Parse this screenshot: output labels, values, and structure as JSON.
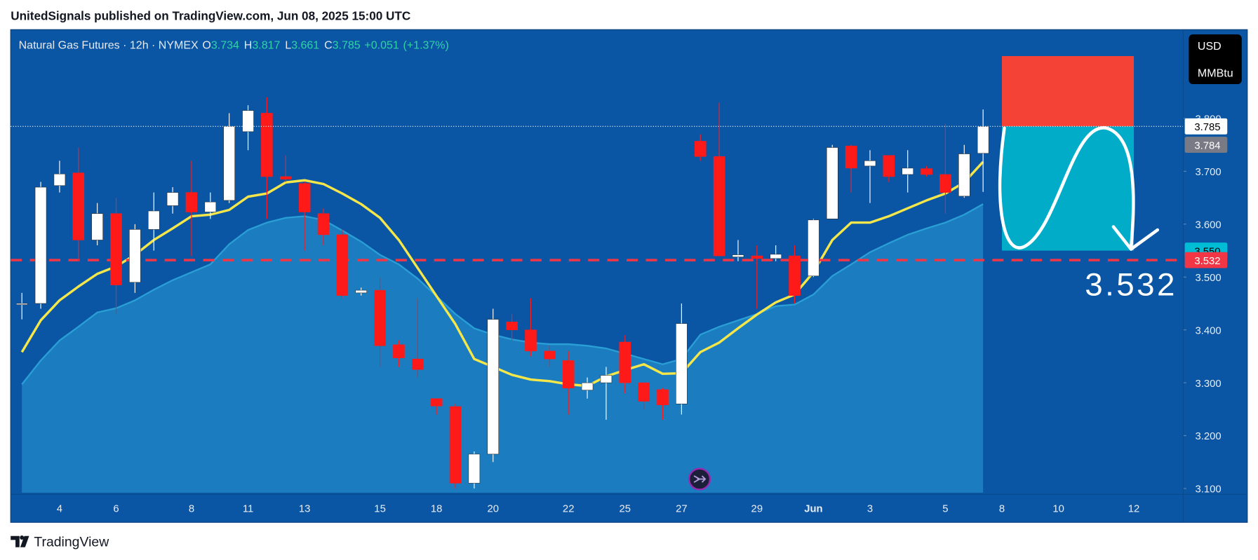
{
  "header": {
    "text": "UnitedSignals published on TradingView.com, Jun 08, 2025 15:00 UTC"
  },
  "footer": {
    "logo": "TradingView"
  },
  "chart_data": {
    "type": "candlestick",
    "title": "Natural Gas Futures · 12h · NYMEX",
    "legend": {
      "o_label": "O",
      "open": 3.734,
      "h_label": "H",
      "high": 3.817,
      "l_label": "L",
      "low": 3.661,
      "c_label": "C",
      "close": 3.785,
      "change": "+0.051",
      "change_pct": "(+1.37%)"
    },
    "currency": "USD",
    "unit": "MMBtu",
    "categories": [
      null,
      null,
      "4",
      null,
      null,
      "6",
      null,
      null,
      null,
      "8",
      null,
      null,
      "11",
      null,
      null,
      "13",
      null,
      null,
      null,
      "15",
      null,
      null,
      "18",
      null,
      null,
      "20",
      null,
      null,
      null,
      "22",
      null,
      null,
      "25",
      null,
      null,
      "27",
      null,
      null,
      null,
      "29",
      null,
      null,
      "Jun",
      null,
      null,
      "3",
      null,
      null,
      null,
      "5",
      null,
      null,
      "8",
      null,
      null,
      "10",
      null,
      null,
      null,
      "12",
      null
    ],
    "open": [
      3.45,
      3.45,
      3.673,
      3.697,
      3.57,
      3.62,
      3.49,
      3.59,
      3.635,
      3.66,
      3.623,
      3.645,
      3.775,
      3.81,
      3.69,
      3.677,
      3.62,
      3.58,
      3.47,
      3.475,
      3.372,
      3.345,
      3.27,
      3.255,
      3.11,
      3.165,
      3.415,
      3.4,
      3.36,
      3.342,
      3.286,
      3.3,
      3.377,
      3.3,
      3.287,
      3.26,
      3.757,
      3.728,
      3.538,
      3.54,
      3.535,
      3.54,
      3.502,
      3.61,
      3.748,
      3.71,
      3.73,
      3.694,
      3.705,
      3.694,
      3.653,
      3.734,
      null,
      null,
      null,
      null,
      null,
      null,
      null,
      null,
      null
    ],
    "high": [
      3.47,
      3.68,
      3.72,
      3.745,
      3.64,
      3.65,
      3.6,
      3.66,
      3.67,
      3.72,
      3.66,
      3.81,
      3.825,
      3.84,
      3.73,
      3.68,
      3.63,
      3.59,
      3.48,
      3.5,
      3.38,
      3.46,
      3.27,
      3.26,
      3.17,
      3.44,
      3.43,
      3.46,
      3.37,
      3.36,
      3.31,
      3.33,
      3.39,
      3.3,
      3.29,
      3.45,
      3.77,
      3.83,
      3.57,
      3.56,
      3.56,
      3.56,
      3.61,
      3.75,
      3.75,
      3.74,
      3.73,
      3.74,
      3.71,
      3.79,
      3.75,
      3.817,
      null,
      null,
      null,
      null,
      null,
      null,
      null,
      null,
      null
    ],
    "low": [
      3.42,
      3.44,
      3.66,
      3.53,
      3.56,
      3.43,
      3.47,
      3.55,
      3.62,
      3.54,
      3.61,
      3.64,
      3.74,
      3.61,
      3.68,
      3.55,
      3.56,
      3.46,
      3.465,
      3.33,
      3.33,
      3.31,
      3.24,
      3.1,
      3.1,
      3.15,
      3.38,
      3.35,
      3.33,
      3.24,
      3.27,
      3.23,
      3.28,
      3.25,
      3.23,
      3.24,
      3.72,
      3.54,
      3.53,
      3.44,
      3.53,
      3.45,
      3.5,
      3.61,
      3.66,
      3.64,
      3.68,
      3.66,
      3.69,
      3.62,
      3.65,
      3.661,
      null,
      null,
      null,
      null,
      null,
      null,
      null,
      null,
      null
    ],
    "close": [
      3.45,
      3.67,
      3.695,
      3.57,
      3.62,
      3.485,
      3.59,
      3.625,
      3.66,
      3.623,
      3.642,
      3.785,
      3.815,
      3.69,
      3.685,
      3.623,
      3.58,
      3.465,
      3.475,
      3.37,
      3.347,
      3.325,
      3.256,
      3.11,
      3.165,
      3.42,
      3.4,
      3.36,
      3.345,
      3.29,
      3.3,
      3.314,
      3.3,
      3.265,
      3.258,
      3.412,
      3.728,
      3.54,
      3.542,
      3.535,
      3.543,
      3.465,
      3.608,
      3.745,
      3.706,
      3.72,
      3.69,
      3.706,
      3.694,
      3.66,
      3.733,
      3.785,
      null,
      null,
      null,
      null,
      null,
      null,
      null,
      null,
      null
    ],
    "up_color": "#ffffff",
    "down_color": "#ff1a1a",
    "series": [
      {
        "type": "area",
        "color": "#2a9fd6",
        "values": [
          3.297,
          3.342,
          3.38,
          3.406,
          3.433,
          3.441,
          3.456,
          3.476,
          3.494,
          3.509,
          3.524,
          3.562,
          3.589,
          3.603,
          3.612,
          3.615,
          3.608,
          3.588,
          3.567,
          3.542,
          3.524,
          3.497,
          3.464,
          3.43,
          3.403,
          3.391,
          3.382,
          3.376,
          3.373,
          3.373,
          3.37,
          3.365,
          3.355,
          3.345,
          3.335,
          3.345,
          3.391,
          3.406,
          3.418,
          3.43,
          3.445,
          3.448,
          3.467,
          3.502,
          3.524,
          3.547,
          3.564,
          3.58,
          3.592,
          3.603,
          3.618,
          3.638,
          null,
          null,
          null,
          null,
          null,
          null,
          null,
          null,
          null
        ]
      },
      {
        "type": "line",
        "color": "#f5e74a",
        "values": [
          3.358,
          3.418,
          3.456,
          3.482,
          3.506,
          3.52,
          3.542,
          3.57,
          3.592,
          3.615,
          3.618,
          3.627,
          3.652,
          3.658,
          3.679,
          3.683,
          3.676,
          3.658,
          3.638,
          3.612,
          3.57,
          3.517,
          3.464,
          3.411,
          3.345,
          3.33,
          3.315,
          3.306,
          3.303,
          3.297,
          3.294,
          3.312,
          3.324,
          3.335,
          3.317,
          3.318,
          3.358,
          3.376,
          3.403,
          3.429,
          3.452,
          3.467,
          3.509,
          3.57,
          3.603,
          3.603,
          3.615,
          3.63,
          3.645,
          3.658,
          3.679,
          3.718,
          null,
          null,
          null,
          null,
          null,
          null,
          null,
          null,
          null
        ]
      }
    ],
    "ylim": [
      3.092,
      3.968
    ],
    "yticks": [
      {
        "value": 3.1,
        "label": "3.100"
      },
      {
        "value": 3.2,
        "label": "3.200"
      },
      {
        "value": 3.3,
        "label": "3.300"
      },
      {
        "value": 3.4,
        "label": "3.400"
      },
      {
        "value": 3.5,
        "label": "3.500"
      },
      {
        "value": 3.6,
        "label": "3.600"
      },
      {
        "value": 3.7,
        "label": "3.700"
      },
      {
        "value": 3.8,
        "label": "3.800"
      }
    ],
    "levels": [
      {
        "value": 3.532,
        "color": "#f23645"
      }
    ],
    "last_price": 3.785,
    "position": {
      "stop": 3.918,
      "entry": 3.785,
      "target": 3.55,
      "stop_color": "#f44336",
      "target_color": "#00acc8"
    },
    "price_labels": [
      {
        "value": 3.785,
        "label": "3.785",
        "color": "#ffffff",
        "text_color": "#000000"
      },
      {
        "value": 3.784,
        "label": "3.784",
        "color": "#787b86",
        "text_color": "#ffffff"
      },
      {
        "value": 3.55,
        "label": "3.550",
        "color": "#00bcd4",
        "text_color": "#000000"
      },
      {
        "value": 3.532,
        "label": "3.532",
        "color": "#f23645",
        "text_color": "#ffffff"
      }
    ],
    "annotation": {
      "text": "3.532"
    }
  }
}
